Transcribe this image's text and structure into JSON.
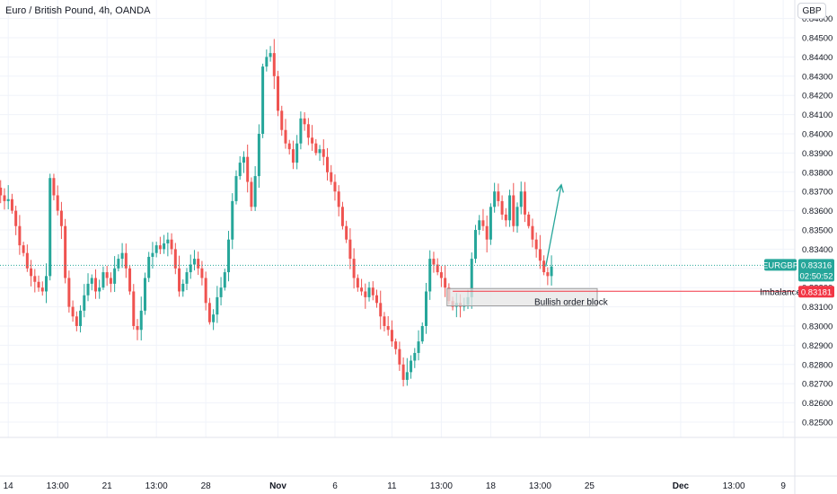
{
  "header": {
    "title": "Euro / British Pound, 4h, OANDA",
    "currency": "GBP"
  },
  "colors": {
    "up": "#26a69a",
    "down": "#ef5350",
    "grid": "#f0f3fa",
    "axis_text": "#131722",
    "current_price": "#26a69a",
    "imbalance": "#f23645",
    "box_fill": "#e6e6e6",
    "box_stroke": "#9e9e9e"
  },
  "symbol_label": "EURGBP",
  "current_price": {
    "value": "0.83316",
    "countdown": "02:50:52"
  },
  "imbalance": {
    "label": "Imbalance",
    "value": "0.83181"
  },
  "box_label": "Bullish order block",
  "chart_data": {
    "type": "candlestick",
    "title": "Euro / British Pound, 4h, OANDA",
    "y_ticks": [
      0.825,
      0.826,
      0.827,
      0.828,
      0.829,
      0.83,
      0.831,
      0.832,
      0.833,
      0.834,
      0.835,
      0.836,
      0.837,
      0.838,
      0.839,
      0.84,
      0.841,
      0.842,
      0.843,
      0.844,
      0.845,
      0.846
    ],
    "y_tick_labels": [
      "0.82500",
      "0.82600",
      "0.82700",
      "0.82800",
      "0.82900",
      "0.83000",
      "0.83100",
      "0.83200",
      "0.83300",
      "0.83400",
      "0.83500",
      "0.83600",
      "0.83700",
      "0.83800",
      "0.83900",
      "0.84000",
      "0.84100",
      "0.84200",
      "0.84300",
      "0.84400",
      "0.84500",
      "0.84600"
    ],
    "x_labels": [
      {
        "i": 3,
        "text": "14"
      },
      {
        "i": 16,
        "text": "13:00"
      },
      {
        "i": 29,
        "text": "21"
      },
      {
        "i": 42,
        "text": "13:00"
      },
      {
        "i": 55,
        "text": "28"
      },
      {
        "i": 74,
        "text": "Nov"
      },
      {
        "i": 89,
        "text": "6"
      },
      {
        "i": 104,
        "text": "11"
      },
      {
        "i": 117,
        "text": "13:00"
      },
      {
        "i": 130,
        "text": "18"
      },
      {
        "i": 143,
        "text": "13:00"
      },
      {
        "i": 156,
        "text": "25"
      },
      {
        "i": 180,
        "text": "Dec"
      },
      {
        "i": 194,
        "text": "13:00"
      },
      {
        "i": 207,
        "text": "9"
      }
    ],
    "ohlc_path": [
      0.8372,
      0.8368,
      0.8365,
      0.8366,
      0.836,
      0.8352,
      0.8342,
      0.8338,
      0.833,
      0.8326,
      0.8323,
      0.832,
      0.8318,
      0.8326,
      0.8377,
      0.8368,
      0.836,
      0.8352,
      0.8325,
      0.831,
      0.8305,
      0.83,
      0.8308,
      0.8316,
      0.8322,
      0.8325,
      0.8318,
      0.832,
      0.8328,
      0.8325,
      0.8322,
      0.833,
      0.8335,
      0.8338,
      0.833,
      0.8318,
      0.83,
      0.8298,
      0.8308,
      0.8325,
      0.8336,
      0.8338,
      0.8342,
      0.834,
      0.8343,
      0.8345,
      0.834,
      0.833,
      0.8318,
      0.8322,
      0.8328,
      0.8332,
      0.8335,
      0.833,
      0.8325,
      0.8312,
      0.8302,
      0.8306,
      0.8315,
      0.832,
      0.8328,
      0.8345,
      0.8365,
      0.8378,
      0.8385,
      0.8388,
      0.8375,
      0.8362,
      0.8378,
      0.84,
      0.8435,
      0.844,
      0.8442,
      0.843,
      0.8412,
      0.8402,
      0.8395,
      0.8392,
      0.8385,
      0.8395,
      0.8408,
      0.8405,
      0.8398,
      0.8395,
      0.839,
      0.8392,
      0.8388,
      0.838,
      0.8375,
      0.837,
      0.8362,
      0.8352,
      0.8345,
      0.8335,
      0.8325,
      0.832,
      0.8318,
      0.8315,
      0.832,
      0.8316,
      0.8312,
      0.8305,
      0.83,
      0.8298,
      0.8292,
      0.8288,
      0.828,
      0.8272,
      0.8276,
      0.8282,
      0.8286,
      0.8292,
      0.83,
      0.8318,
      0.8335,
      0.8332,
      0.8328,
      0.8325,
      0.832,
      0.8313,
      0.831,
      0.8312,
      0.831,
      0.8311,
      0.8315,
      0.8335,
      0.835,
      0.8355,
      0.8352,
      0.8345,
      0.8362,
      0.837,
      0.8365,
      0.8358,
      0.8355,
      0.8368,
      0.8352,
      0.8362,
      0.837,
      0.8358,
      0.8352,
      0.8345,
      0.834,
      0.8334,
      0.8328,
      0.8326,
      0.8331
    ]
  }
}
